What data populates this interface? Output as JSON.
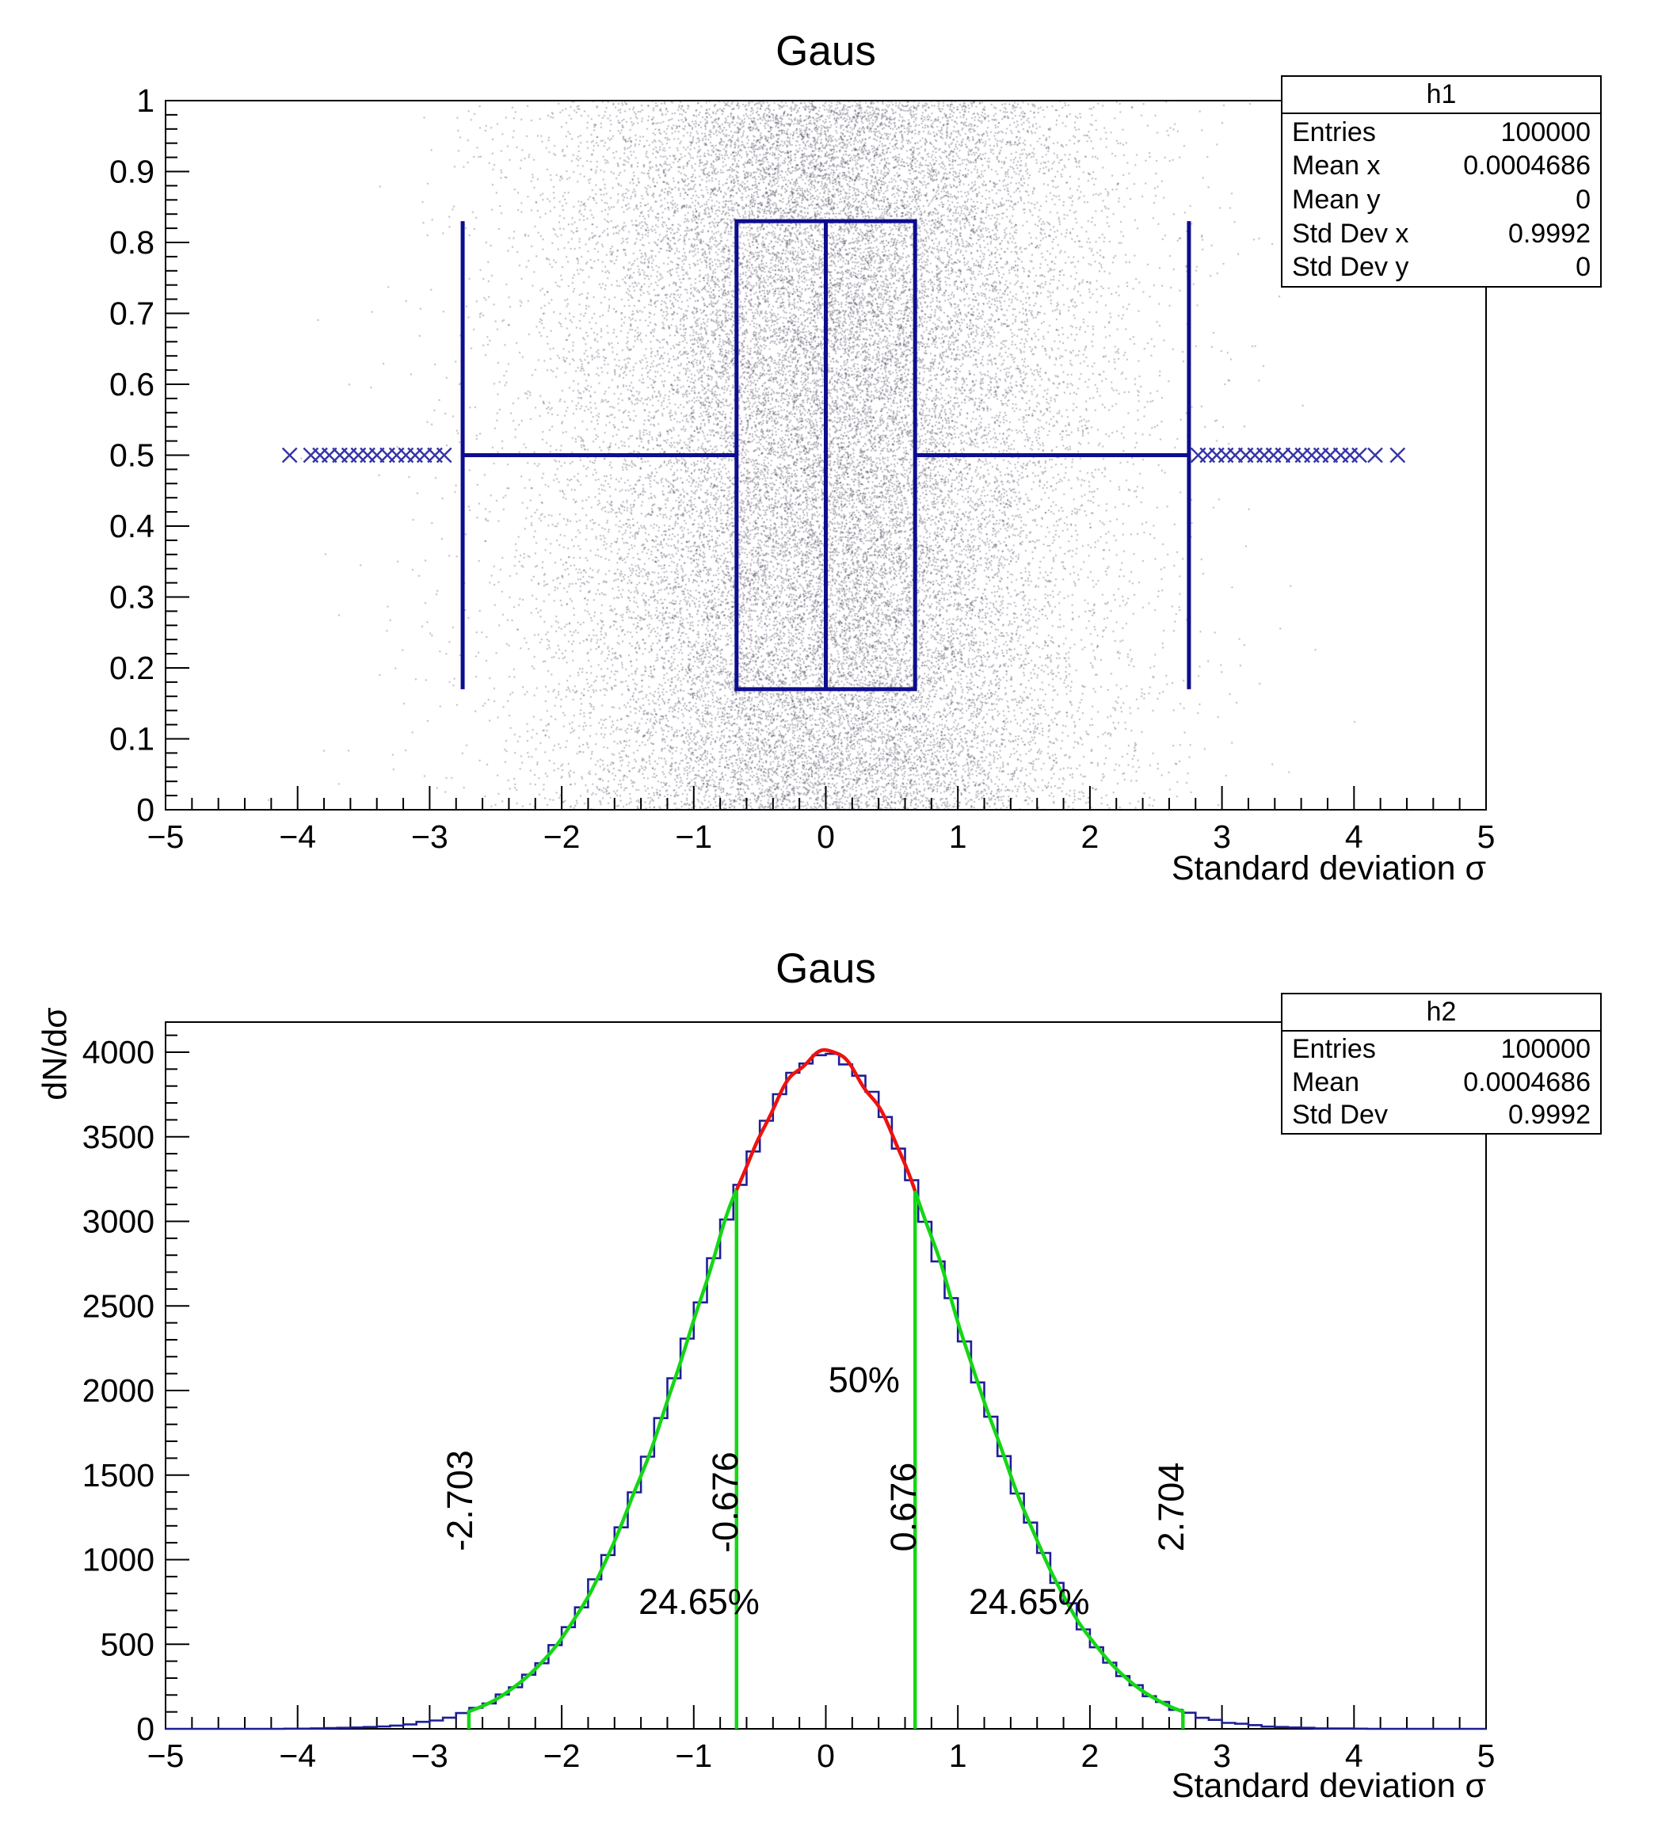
{
  "colors": {
    "candle_blue": "#0d0d8e",
    "marker_blue": "#3434a8",
    "hist_blue": "#1e1e96",
    "fit_red": "#ed120e",
    "fit_green": "#14d714",
    "scatter_gray": "rgba(42,42,66,0.45)",
    "frame_black": "#000000"
  },
  "chart_data": [
    {
      "type": "scatter",
      "title": "Gaus",
      "xlabel": "Standard deviation σ",
      "ylabel": "",
      "xlim": [
        -5,
        5
      ],
      "ylim": [
        0,
        1
      ],
      "x_ticks": {
        "values": [
          -5,
          -4,
          -3,
          -2,
          -1,
          0,
          1,
          2,
          3,
          4,
          5
        ],
        "labels": [
          "−5",
          "−4",
          "−3",
          "−2",
          "−1",
          "0",
          "1",
          "2",
          "3",
          "4",
          "5"
        ]
      },
      "y_ticks": {
        "values": [
          0,
          0.1,
          0.2,
          0.3,
          0.4,
          0.5,
          0.6,
          0.7,
          0.8,
          0.9,
          1
        ],
        "labels": [
          "0",
          "0.1",
          "0.2",
          "0.3",
          "0.4",
          "0.5",
          "0.6",
          "0.7",
          "0.8",
          "0.9",
          "1"
        ]
      },
      "x_minor_step": 0.2,
      "y_minor_step": 0.02,
      "entries": 100000,
      "scatter": {
        "x_distribution": "gaussian",
        "x_mean": 0.0004686,
        "x_sigma": 0.9992,
        "y_distribution": "uniform_0_1",
        "n_points_rendered": 32000
      },
      "candle": {
        "median": 0,
        "box_x": [
          -0.676,
          0.676
        ],
        "box_y": [
          0.17,
          0.83
        ],
        "whisker_y": 0.5,
        "whisker_x": [
          -2.75,
          2.75
        ],
        "outlier_y": 0.5,
        "outliers_left": [
          -4.06,
          -3.9,
          -3.83,
          -3.76,
          -3.68,
          -3.61,
          -3.54,
          -3.47,
          -3.4,
          -3.32,
          -3.25,
          -3.18,
          -3.11,
          -3.04,
          -2.96,
          -2.89
        ],
        "outliers_right": [
          2.82,
          2.89,
          2.96,
          3.03,
          3.1,
          3.18,
          3.25,
          3.32,
          3.39,
          3.46,
          3.54,
          3.61,
          3.68,
          3.75,
          3.82,
          3.9,
          3.97,
          4.04,
          4.16,
          4.33
        ]
      },
      "stats_box": {
        "title": "h1",
        "rows": [
          {
            "label": "Entries",
            "value": "100000"
          },
          {
            "label": "Mean x",
            "value": "0.0004686"
          },
          {
            "label": "Mean y",
            "value": "0"
          },
          {
            "label": "Std Dev x",
            "value": "0.9992"
          },
          {
            "label": "Std Dev y",
            "value": "0"
          }
        ]
      }
    },
    {
      "type": "histogram",
      "title": "Gaus",
      "xlabel": "Standard deviation σ",
      "ylabel": "dN/dσ",
      "xlim": [
        -5,
        5
      ],
      "ylim": [
        0,
        4178
      ],
      "bins": 100,
      "entries": 100000,
      "x_ticks": {
        "values": [
          -5,
          -4,
          -3,
          -2,
          -1,
          0,
          1,
          2,
          3,
          4,
          5
        ],
        "labels": [
          "−5",
          "−4",
          "−3",
          "−2",
          "−1",
          "0",
          "1",
          "2",
          "3",
          "4",
          "5"
        ]
      },
      "y_ticks": {
        "values": [
          0,
          500,
          1000,
          1500,
          2000,
          2500,
          3000,
          3500,
          4000
        ],
        "labels": [
          "0",
          "500",
          "1000",
          "1500",
          "2000",
          "2500",
          "3000",
          "3500",
          "4000"
        ]
      },
      "x_minor_step": 0.2,
      "y_minor_step": 100,
      "bin_values": [
        0,
        0,
        0,
        0,
        0,
        0,
        0,
        0,
        0,
        1,
        1,
        3,
        4,
        6,
        8,
        11,
        14,
        19,
        26,
        41,
        49,
        66,
        93,
        124,
        150,
        203,
        246,
        320,
        388,
        495,
        601,
        718,
        884,
        1027,
        1191,
        1398,
        1609,
        1837,
        2072,
        2307,
        2521,
        2782,
        3011,
        3216,
        3413,
        3595,
        3752,
        3878,
        3933,
        3982,
        3990,
        3928,
        3861,
        3766,
        3617,
        3430,
        3243,
        2997,
        2763,
        2546,
        2290,
        2048,
        1845,
        1612,
        1391,
        1219,
        1040,
        863,
        742,
        588,
        482,
        391,
        312,
        258,
        193,
        159,
        112,
        95,
        65,
        53,
        35,
        30,
        22,
        13,
        11,
        8,
        6,
        3,
        2,
        2,
        1,
        0,
        0,
        0,
        0,
        0,
        0,
        0,
        0,
        0
      ],
      "gaussian_fit": {
        "amplitude": 3989,
        "mean": 0.0004686,
        "sigma": 0.9992
      },
      "fit_segments": [
        {
          "color_key": "fit_red",
          "x_from": -0.676,
          "x_to": 0.676
        },
        {
          "color_key": "fit_green",
          "x_from": -2.703,
          "x_to": -0.676
        },
        {
          "color_key": "fit_green",
          "x_from": 0.676,
          "x_to": 2.704
        }
      ],
      "percentile_lines": [
        -2.703,
        -0.676,
        0.676,
        2.704
      ],
      "annotations": [
        {
          "text": "-2.703",
          "x": -2.77,
          "y": 1350,
          "rotate": -90
        },
        {
          "text": "-0.676",
          "x": -0.76,
          "y": 1340,
          "rotate": -90
        },
        {
          "text": "0.676",
          "x": 0.59,
          "y": 1310,
          "rotate": -90
        },
        {
          "text": "2.704",
          "x": 2.62,
          "y": 1310,
          "rotate": -90
        },
        {
          "text": "50%",
          "x": 0.29,
          "y": 2060,
          "rotate": 0
        },
        {
          "text": "24.65%",
          "x": -0.96,
          "y": 750,
          "rotate": 0
        },
        {
          "text": "24.65%",
          "x": 1.54,
          "y": 750,
          "rotate": 0
        }
      ],
      "stats_box": {
        "title": "h2",
        "rows": [
          {
            "label": "Entries",
            "value": "100000"
          },
          {
            "label": "Mean",
            "value": "0.0004686"
          },
          {
            "label": "Std Dev",
            "value": "0.9992"
          }
        ]
      }
    }
  ]
}
